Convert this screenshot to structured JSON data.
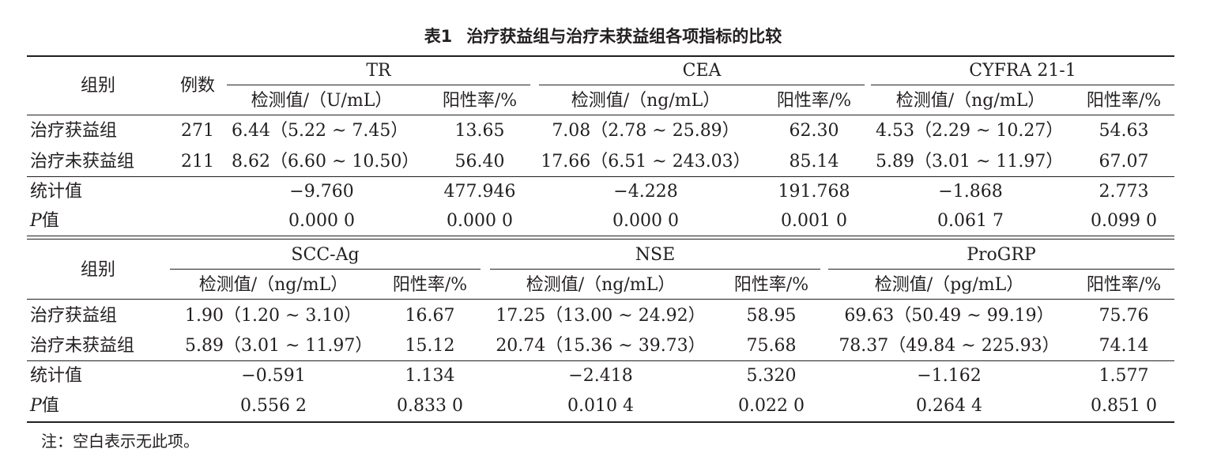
{
  "title": {
    "number": "表1",
    "text": "治疗获益组与治疗未获益组各项指标的比较"
  },
  "table1": {
    "group_header": "组别",
    "count_header": "例数",
    "markers": [
      {
        "name": "TR",
        "value_label": "检测值/（U/mL）",
        "rate_label": "阳性率/%"
      },
      {
        "name": "CEA",
        "value_label": "检测值/（ng/mL）",
        "rate_label": "阳性率/%"
      },
      {
        "name": "CYFRA 21-1",
        "value_label": "检测值/（ng/mL）",
        "rate_label": "阳性率/%"
      }
    ],
    "rows": [
      {
        "group": "治疗获益组",
        "count": "271",
        "cells": [
          "6.44（5.22 ~ 7.45）",
          "13.65",
          "7.08（2.78 ~ 25.89）",
          "62.30",
          "4.53（2.29 ~ 10.27）",
          "54.63"
        ]
      },
      {
        "group": "治疗未获益组",
        "count": "211",
        "cells": [
          "8.62（6.60 ~ 10.50）",
          "56.40",
          "17.66（6.51 ~ 243.03）",
          "85.14",
          "5.89（3.01 ~ 11.97）",
          "67.07"
        ]
      }
    ],
    "stat_label": "统计值",
    "stat_values": [
      "−9.760",
      "477.946",
      "−4.228",
      "191.768",
      "−1.868",
      "2.773"
    ],
    "p_label_italic": "P",
    "p_label_rest": "值",
    "p_values": [
      "0.000 0",
      "0.000 0",
      "0.000 0",
      "0.001 0",
      "0.061 7",
      "0.099 0"
    ]
  },
  "table2": {
    "group_header": "组别",
    "markers": [
      {
        "name": "SCC-Ag",
        "value_label": "检测值/（ng/mL）",
        "rate_label": "阳性率/%"
      },
      {
        "name": "NSE",
        "value_label": "检测值/（ng/mL）",
        "rate_label": "阳性率/%"
      },
      {
        "name": "ProGRP",
        "value_label": "检测值/（pg/mL）",
        "rate_label": "阳性率/%"
      }
    ],
    "rows": [
      {
        "group": "治疗获益组",
        "cells": [
          "1.90（1.20 ~ 3.10）",
          "16.67",
          "17.25（13.00 ~ 24.92）",
          "58.95",
          "69.63（50.49 ~ 99.19）",
          "75.76"
        ]
      },
      {
        "group": "治疗未获益组",
        "cells": [
          "5.89（3.01 ~ 11.97）",
          "15.12",
          "20.74（15.36 ~ 39.73）",
          "75.68",
          "78.37（49.84 ~ 225.93）",
          "74.14"
        ]
      }
    ],
    "stat_label": "统计值",
    "stat_values": [
      "−0.591",
      "1.134",
      "−2.418",
      "5.320",
      "−1.162",
      "1.577"
    ],
    "p_label_italic": "P",
    "p_label_rest": "值",
    "p_values": [
      "0.556 2",
      "0.833 0",
      "0.010 4",
      "0.022 0",
      "0.264 4",
      "0.851 0"
    ]
  },
  "note": "注：空白表示无此项。"
}
